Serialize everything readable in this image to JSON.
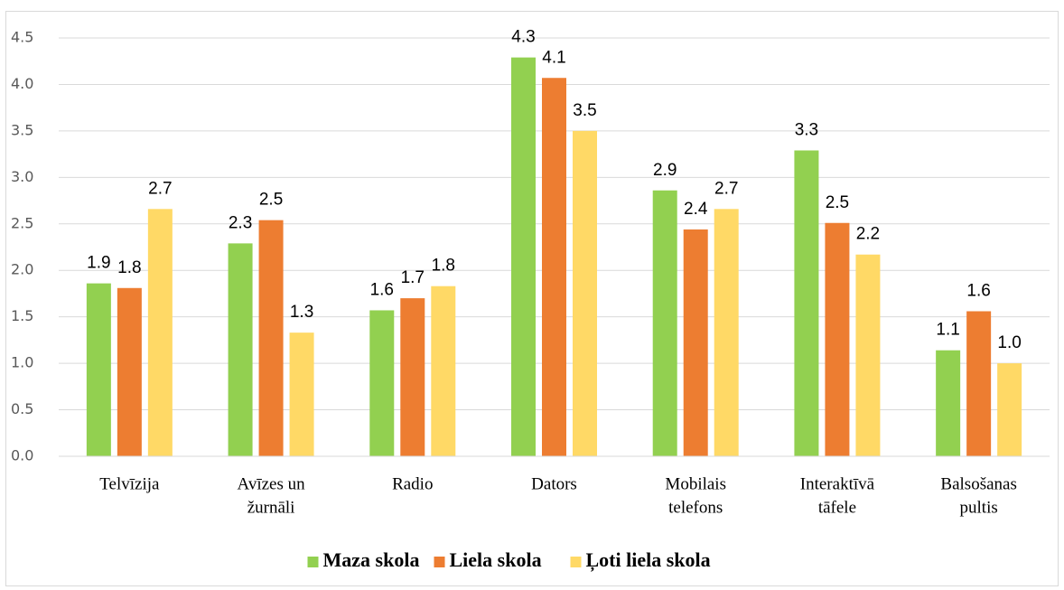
{
  "chart_data": {
    "type": "bar",
    "categories": [
      [
        "Telvīzija"
      ],
      [
        "Avīzes un",
        "žurnāli"
      ],
      [
        "Radio"
      ],
      [
        "Dators"
      ],
      [
        "Mobilais",
        "telefons"
      ],
      [
        "Interaktīvā",
        "tāfele"
      ],
      [
        "Balsošanas",
        "pultis"
      ]
    ],
    "series": [
      {
        "name": "Maza skola",
        "color": "#92d050",
        "values": [
          1.86,
          2.29,
          1.57,
          4.29,
          2.86,
          3.29,
          1.14
        ],
        "value_labels": [
          "1.9",
          "2.3",
          "1.6",
          "4.3",
          "2.9",
          "3.3",
          "1.1"
        ]
      },
      {
        "name": "Liela skola",
        "color": "#ed7d31",
        "values": [
          1.81,
          2.54,
          1.7,
          4.07,
          2.44,
          2.51,
          1.56
        ],
        "value_labels": [
          "1.8",
          "2.5",
          "1.7",
          "4.1",
          "2.4",
          "2.5",
          "1.6"
        ]
      },
      {
        "name": "Ļoti liela skola",
        "color": "#ffd966",
        "values": [
          2.66,
          1.33,
          1.83,
          3.5,
          2.66,
          2.17,
          1.0
        ],
        "value_labels": [
          "2.7",
          "1.3",
          "1.8",
          "3.5",
          "2.7",
          "2.2",
          "1.0"
        ]
      }
    ],
    "ylim": [
      0,
      4.5
    ],
    "yticks": [
      {
        "value": 0,
        "label": "0.0"
      },
      {
        "value": 0.5,
        "label": "0.5"
      },
      {
        "value": 1,
        "label": "1.0"
      },
      {
        "value": 1.5,
        "label": "1.5"
      },
      {
        "value": 2,
        "label": "2.0"
      },
      {
        "value": 2.5,
        "label": "2.5"
      },
      {
        "value": 3,
        "label": "3.0"
      },
      {
        "value": 3.5,
        "label": "3.5"
      },
      {
        "value": 4,
        "label": "4.0"
      },
      {
        "value": 4.5,
        "label": "4.5"
      }
    ],
    "grid": true,
    "legend": "bottom"
  }
}
